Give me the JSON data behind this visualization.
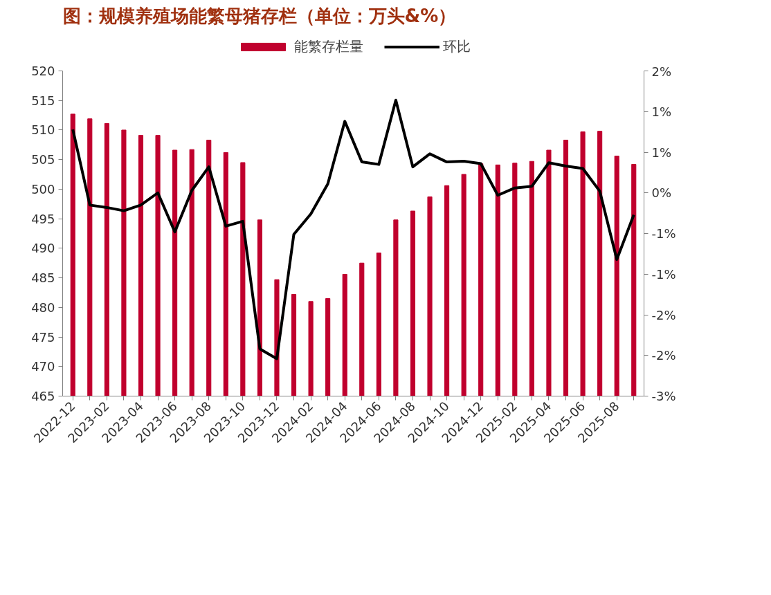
{
  "chart_data": {
    "type": "bar",
    "title": "图：规模养殖场能繁母猪存栏（单位：万头&%）",
    "categories": [
      "2022-12",
      null,
      "2023-02",
      null,
      "2023-04",
      null,
      "2023-06",
      null,
      "2023-08",
      null,
      "2023-10",
      null,
      "2023-12",
      null,
      "2024-02",
      null,
      "2024-04",
      null,
      "2024-06",
      null,
      "2024-08",
      null,
      "2024-10",
      null,
      "2024-12",
      null,
      "2025-02",
      null,
      "2025-04",
      null,
      "2025-06",
      null,
      "2025-08",
      null
    ],
    "series": [
      {
        "name": "能繁存栏量",
        "color": "#c0002d",
        "values": [
          512.7,
          511.9,
          511.1,
          510.0,
          509.1,
          509.1,
          506.6,
          506.7,
          508.3,
          506.2,
          504.5,
          494.8,
          484.7,
          482.2,
          481.0,
          481.5,
          485.6,
          487.5,
          489.2,
          494.8,
          496.3,
          498.7,
          500.6,
          502.5,
          504.3,
          504.1,
          504.4,
          504.7,
          506.6,
          508.3,
          509.7,
          509.8,
          505.6,
          504.2
        ]
      },
      {
        "name": "环比",
        "type": "line",
        "axis": "y2",
        "color": "#000000",
        "values": [
          0.78,
          -0.15,
          -0.18,
          -0.22,
          -0.15,
          0.0,
          -0.48,
          0.03,
          0.32,
          -0.41,
          -0.35,
          -1.92,
          -2.04,
          -0.51,
          -0.26,
          0.11,
          0.88,
          0.38,
          0.35,
          1.14,
          0.32,
          0.48,
          0.38,
          0.39,
          0.36,
          -0.03,
          0.06,
          0.08,
          0.37,
          0.33,
          0.3,
          0.02,
          -0.82,
          -0.27
        ]
      }
    ],
    "ylim": [
      465,
      520
    ],
    "yticks": [
      465,
      470,
      475,
      480,
      485,
      490,
      495,
      500,
      505,
      510,
      515,
      520
    ],
    "y2lim": [
      -2.5,
      1.5
    ],
    "y2ticks": [
      {
        "value": -2.5,
        "label": "-3%"
      },
      {
        "value": -2.0,
        "label": "-2%"
      },
      {
        "value": -1.5,
        "label": "-2%"
      },
      {
        "value": -1.0,
        "label": "-1%"
      },
      {
        "value": -0.5,
        "label": "-1%"
      },
      {
        "value": 0,
        "label": "0%"
      },
      {
        "value": 0.5,
        "label": "1%"
      },
      {
        "value": 1.0,
        "label": "1%"
      },
      {
        "value": 1.5,
        "label": "2%"
      }
    ],
    "grid": false,
    "legend": "top",
    "marker": "none",
    "line_style": "solid"
  }
}
